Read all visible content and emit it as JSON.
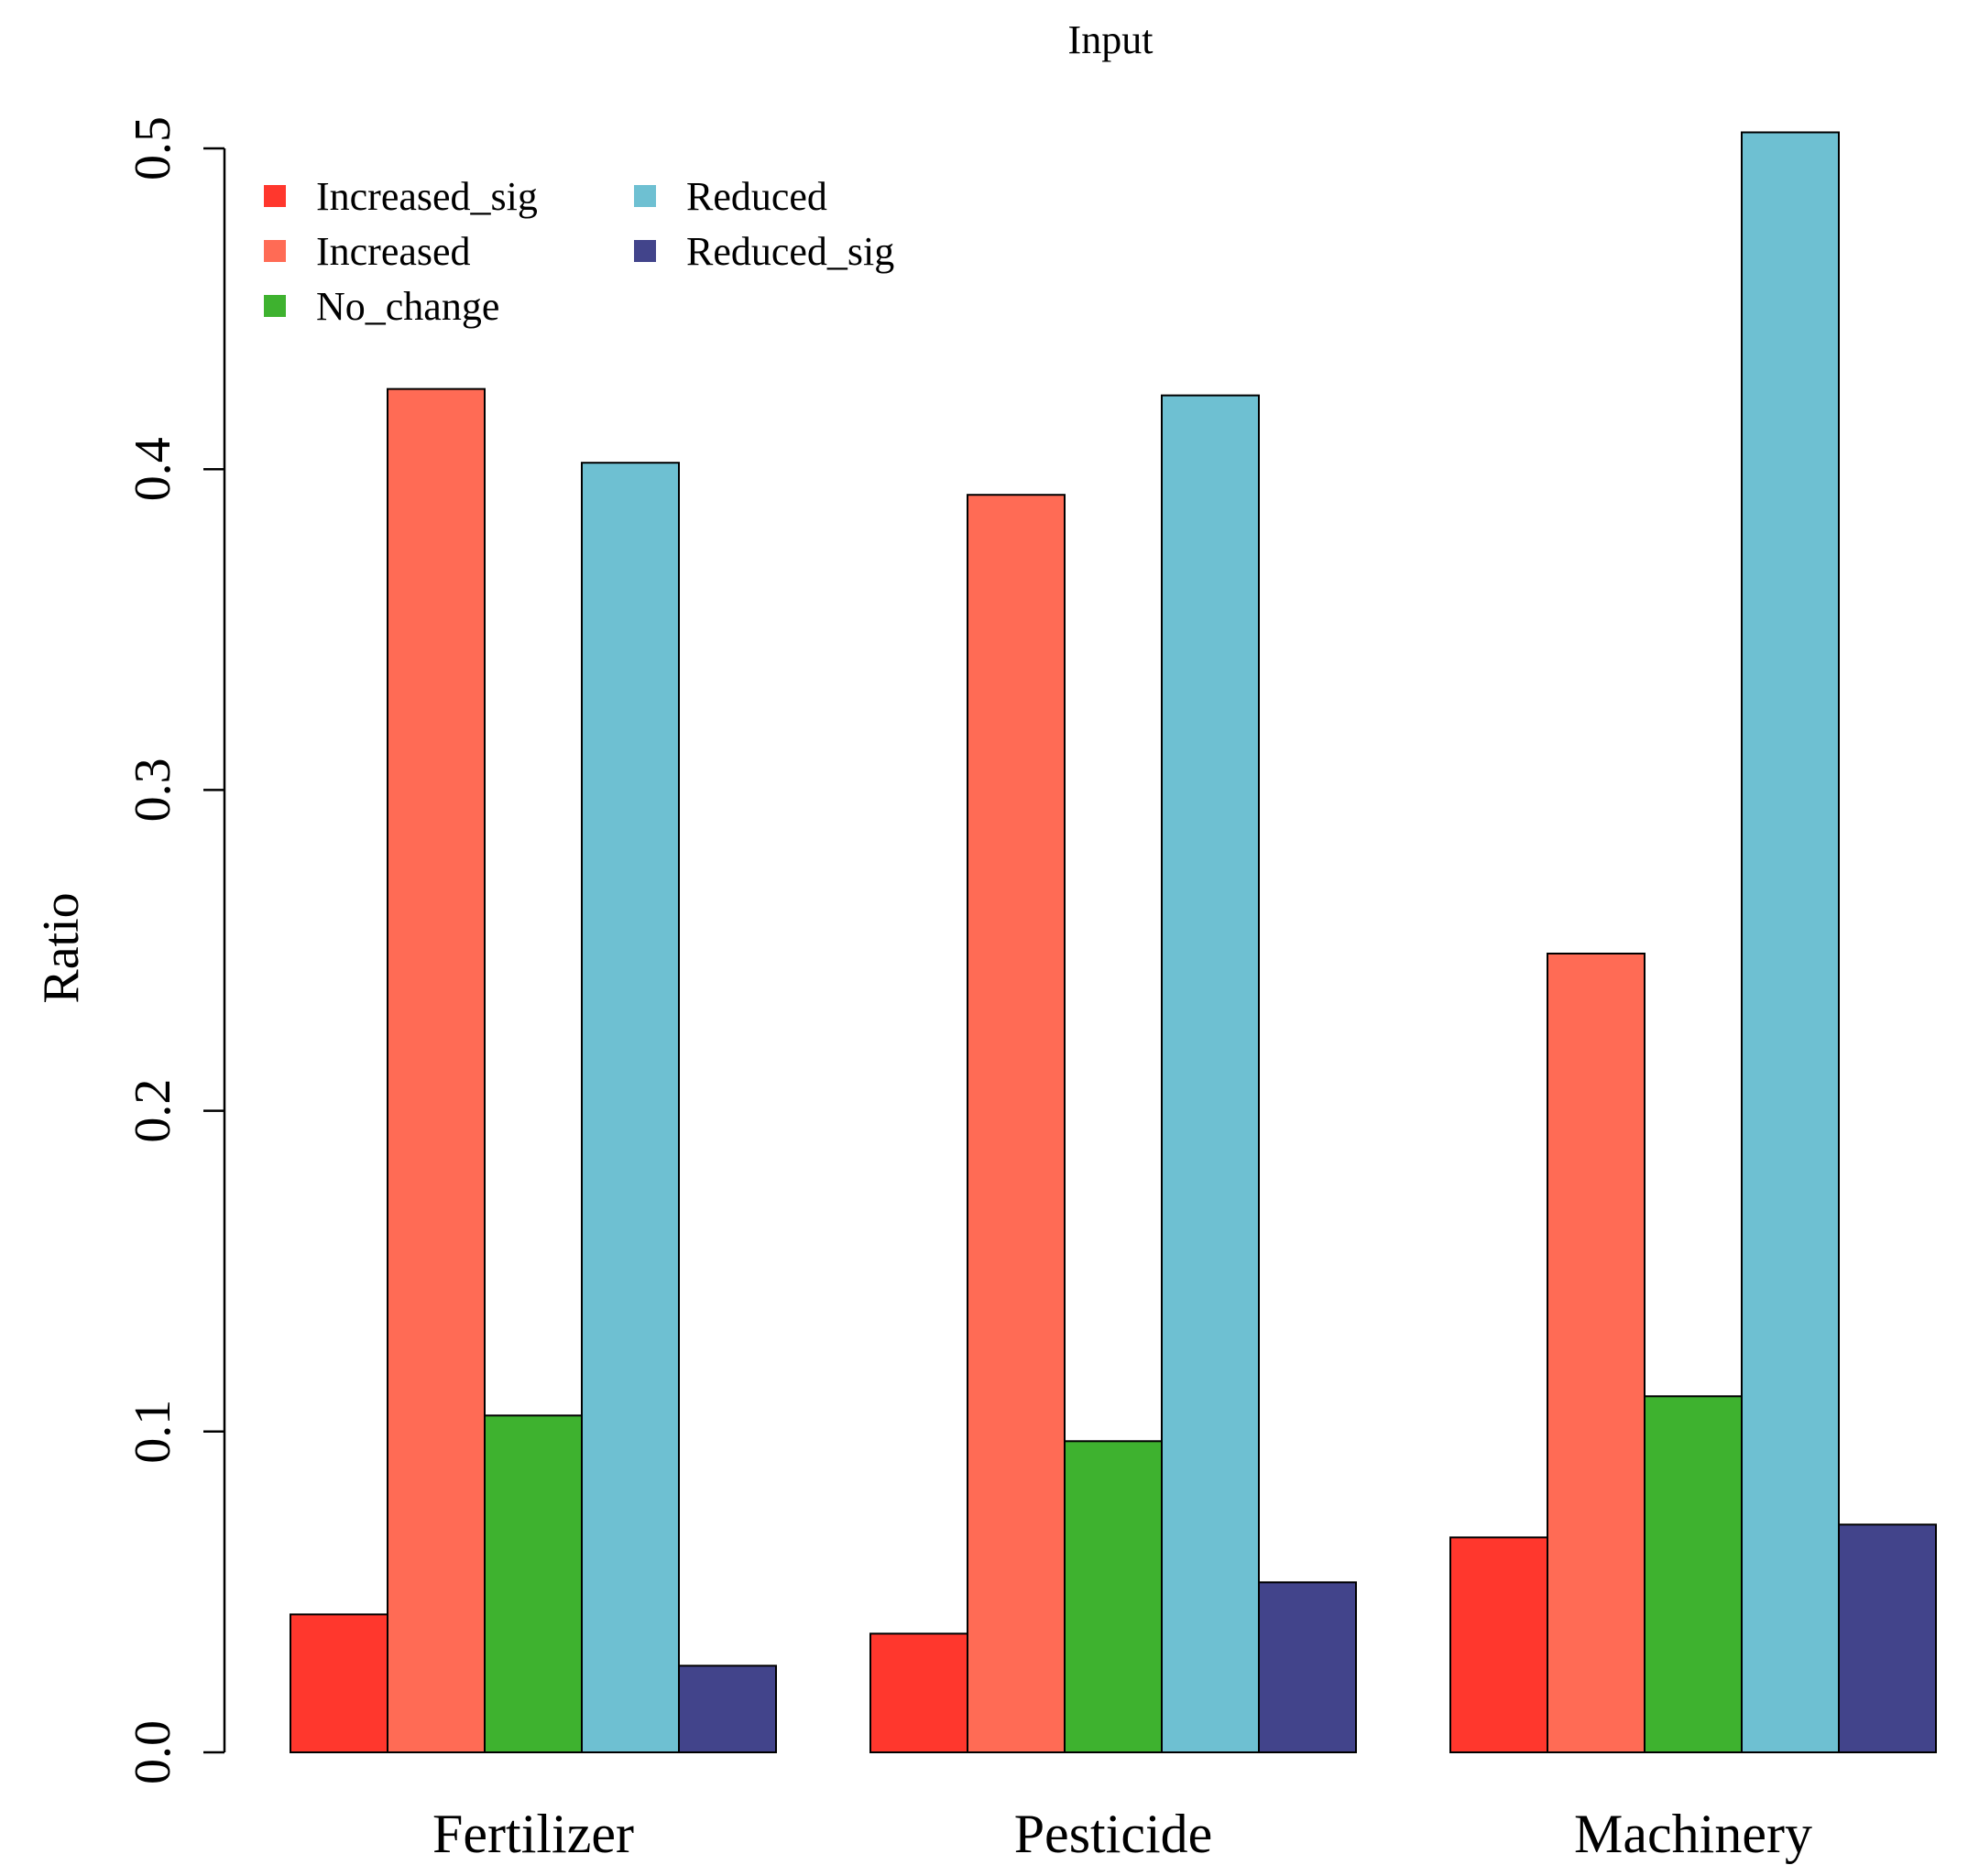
{
  "chart_data": {
    "type": "bar",
    "title": "Input",
    "xlabel": "",
    "ylabel": "Ratio",
    "ylim": [
      0,
      0.5
    ],
    "yticks": [
      "0.0",
      "0.1",
      "0.2",
      "0.3",
      "0.4",
      "0.5"
    ],
    "categories": [
      "Fertilizer",
      "Pesticide",
      "Machinery"
    ],
    "legend_position": "top-left",
    "grid": false,
    "series": [
      {
        "name": "Increased_sig",
        "color": "#ff372d",
        "values": [
          0.043,
          0.037,
          0.067
        ]
      },
      {
        "name": "Increased",
        "color": "#ff6b55",
        "values": [
          0.425,
          0.392,
          0.249
        ]
      },
      {
        "name": "No_change",
        "color": "#3eb22f",
        "values": [
          0.105,
          0.097,
          0.111
        ]
      },
      {
        "name": "Reduced",
        "color": "#6ec0d2",
        "values": [
          0.402,
          0.423,
          0.505
        ]
      },
      {
        "name": "Reduced_sig",
        "color": "#42448b",
        "values": [
          0.027,
          0.053,
          0.071
        ]
      }
    ]
  }
}
